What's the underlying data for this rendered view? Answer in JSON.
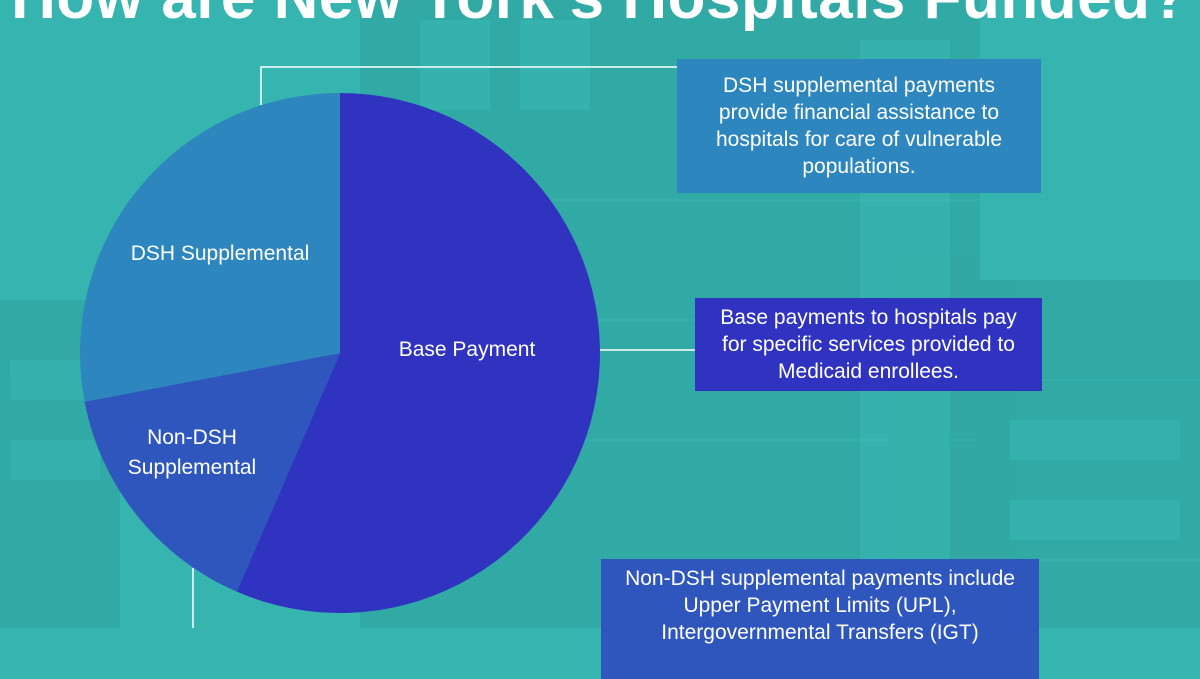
{
  "page": {
    "title": "How are New York's Hospitals Funded?",
    "background_color": "#36b5b0",
    "background_image": "hospital-building-photo"
  },
  "chart_data": {
    "type": "pie",
    "slices": [
      {
        "label": "Base Payment",
        "value": 56.5,
        "color": "#2f33c0"
      },
      {
        "label": "Non-DSH Supplemental",
        "value": 15.5,
        "color": "#2e56bd"
      },
      {
        "label": "DSH Supplemental",
        "value": 28.0,
        "color": "#2d86bd"
      }
    ],
    "start_angle_deg": 0,
    "direction": "clockwise"
  },
  "callouts": {
    "dsh": {
      "text": "DSH supplemental payments provide financial assistance to hospitals for care of vulnerable populations.",
      "lines": [
        "DSH supplemental payments",
        "provide financial assistance to",
        "hospitals for care of vulnerable",
        "populations."
      ],
      "color": "#2d86bd"
    },
    "base": {
      "text": "Base payments to hospitals pay for specific services provided to Medicaid enrollees.",
      "lines": [
        "Base payments to hospitals pay",
        "for specific services provided to",
        "Medicaid enrollees."
      ],
      "color": "#2f33c0"
    },
    "nondsh": {
      "text": "Non-DSH supplemental payments include Upper Payment Limits (UPL), Intergovernmental Transfers (IGT)",
      "lines": [
        "Non-DSH supplemental payments include",
        "Upper Payment Limits (UPL),",
        "Intergovernmental Transfers (IGT)"
      ],
      "color": "#2e56bd"
    }
  }
}
